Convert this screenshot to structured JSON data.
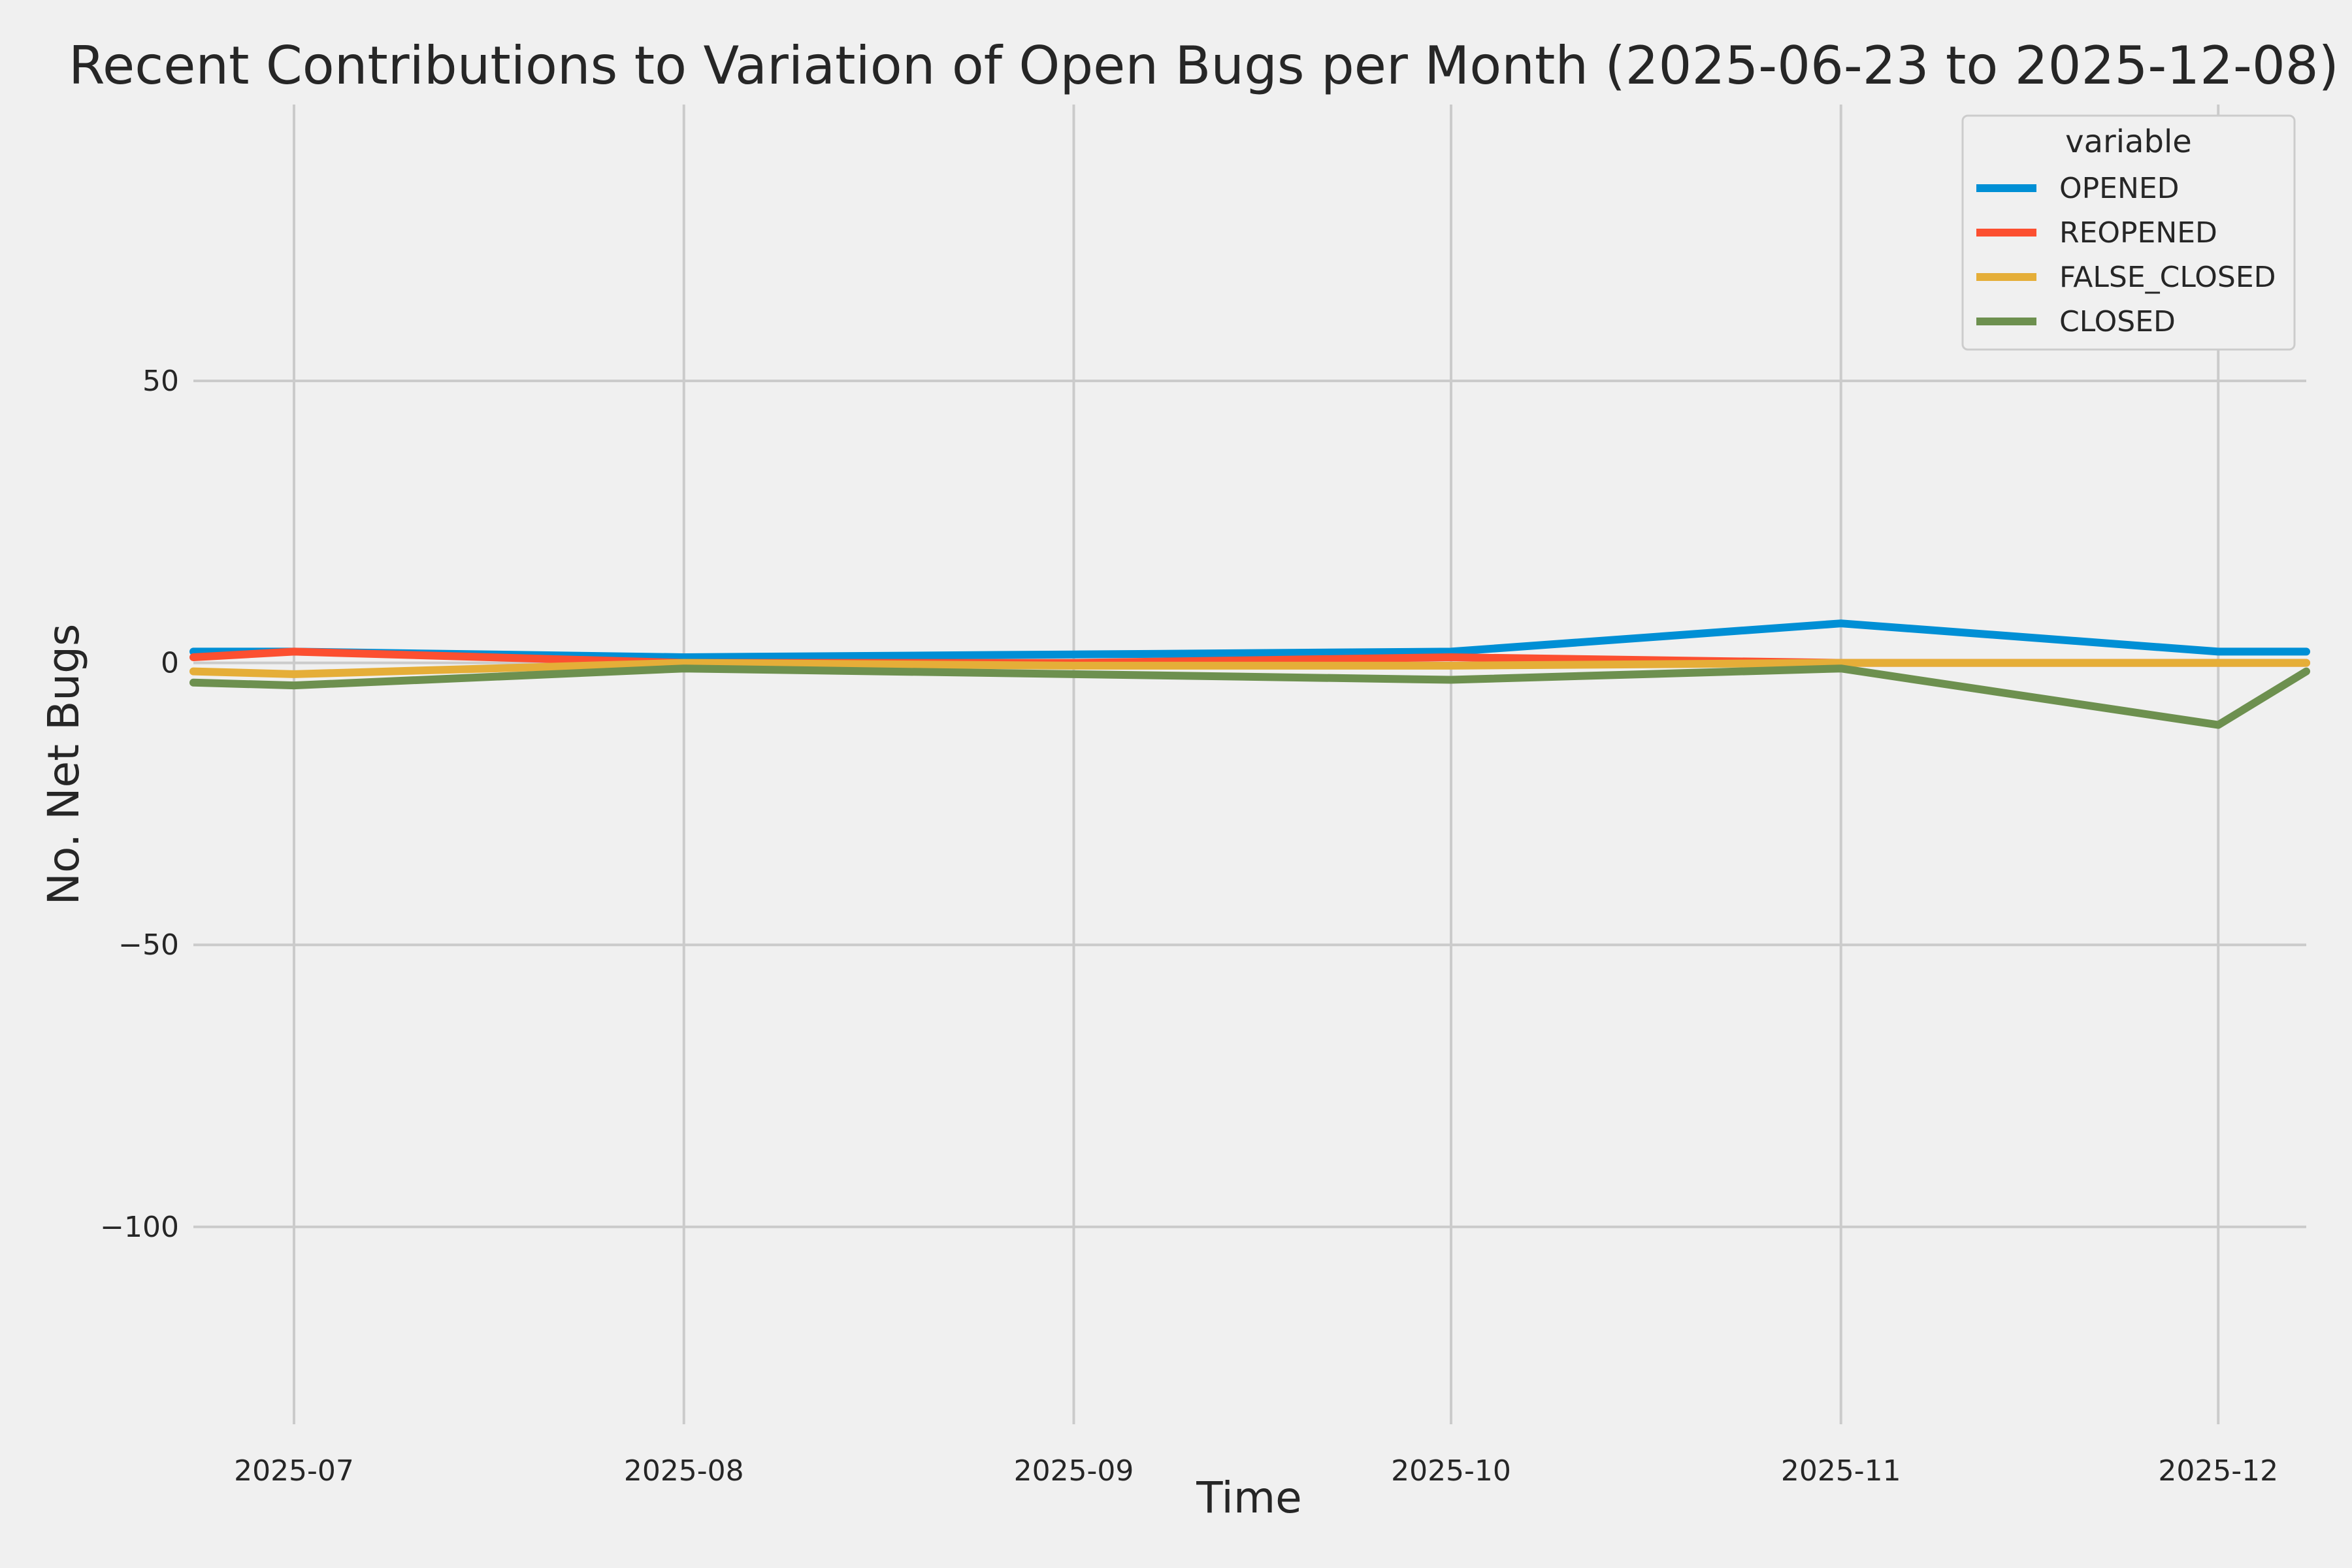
{
  "chart_data": {
    "type": "line",
    "title": "Recent Contributions to Variation of Open Bugs per Month (2025-06-23 to 2025-12-08)",
    "xlabel": "Time",
    "ylabel": "No. Net Bugs",
    "x": [
      "2025-06-23",
      "2025-07-01",
      "2025-08-01",
      "2025-09-01",
      "2025-10-01",
      "2025-11-01",
      "2025-12-01",
      "2025-12-08"
    ],
    "xlim": [
      "2025-06-23",
      "2025-12-08"
    ],
    "ylim": [
      -135,
      99
    ],
    "yticks": [
      50,
      0,
      -50,
      -100
    ],
    "ytick_labels": [
      "50",
      "0",
      "−50",
      "−100"
    ],
    "xticks": [
      "2025-07-01",
      "2025-08-01",
      "2025-09-01",
      "2025-10-01",
      "2025-11-01",
      "2025-12-01"
    ],
    "xtick_labels": [
      "2025-07",
      "2025-08",
      "2025-09",
      "2025-10",
      "2025-11",
      "2025-12"
    ],
    "grid": true,
    "legend": {
      "title": "variable",
      "placement": "top-right"
    },
    "series": [
      {
        "name": "OPENED",
        "color": "#008fd5",
        "values": [
          2,
          2,
          1,
          1.5,
          2,
          7,
          2,
          2
        ]
      },
      {
        "name": "REOPENED",
        "color": "#fc4f30",
        "values": [
          1,
          2,
          0,
          0,
          1,
          0,
          0,
          0
        ]
      },
      {
        "name": "FALSE_CLOSED",
        "color": "#e5ae38",
        "values": [
          -1.5,
          -2,
          0,
          -0.5,
          -0.5,
          0,
          0,
          0
        ]
      },
      {
        "name": "CLOSED",
        "color": "#6d904f",
        "values": [
          -3.5,
          -4,
          -1,
          -2,
          -3,
          -1,
          -11,
          -1.5
        ]
      }
    ]
  }
}
